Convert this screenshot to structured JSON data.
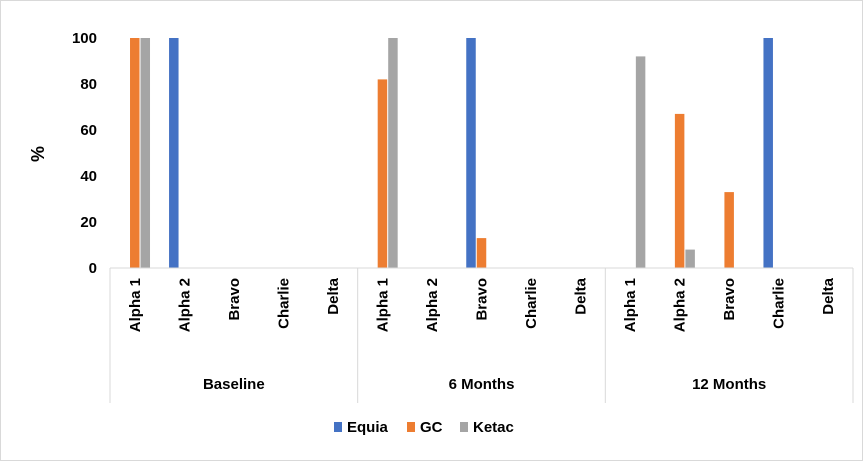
{
  "chart_data": {
    "type": "bar",
    "ylabel": "%",
    "ylim": [
      0,
      100
    ],
    "yticks": [
      "0",
      "20",
      "40",
      "60",
      "80",
      "100"
    ],
    "grid": false,
    "legend_position": "bottom",
    "groups": [
      {
        "label": "Baseline",
        "categories": [
          "Alpha 1",
          "Alpha 2",
          "Bravo",
          "Charlie",
          "Delta"
        ]
      },
      {
        "label": "6 Months",
        "categories": [
          "Alpha 1",
          "Alpha 2",
          "Bravo",
          "Charlie",
          "Delta"
        ]
      },
      {
        "label": "12 Months",
        "categories": [
          "Alpha 1",
          "Alpha 2",
          "Bravo",
          "Charlie",
          "Delta"
        ]
      }
    ],
    "series": [
      {
        "name": "Equia",
        "color": "#4472C4",
        "values": [
          0,
          100,
          0,
          0,
          0,
          0,
          0,
          100,
          0,
          0,
          0,
          0,
          0,
          100,
          0
        ]
      },
      {
        "name": "GC",
        "color": "#ED7D31",
        "values": [
          100,
          0,
          0,
          0,
          0,
          82,
          0,
          13,
          0,
          0,
          0,
          67,
          33,
          0,
          0
        ]
      },
      {
        "name": "Ketac",
        "color": "#A5A5A5",
        "values": [
          100,
          0,
          0,
          0,
          0,
          100,
          0,
          0,
          0,
          0,
          92,
          8,
          0,
          0,
          0
        ]
      }
    ]
  }
}
